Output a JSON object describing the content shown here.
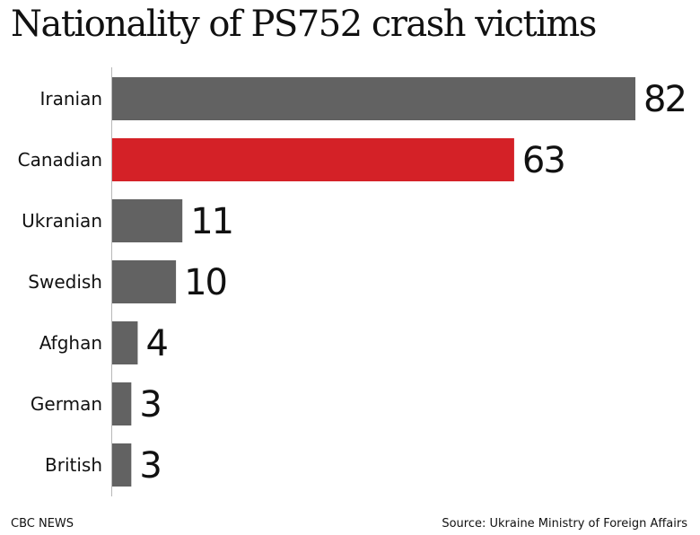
{
  "chart_data": {
    "type": "bar",
    "orientation": "horizontal",
    "title": "Nationality of PS752 crash victims",
    "categories": [
      "Iranian",
      "Canadian",
      "Ukranian",
      "Swedish",
      "Afghan",
      "German",
      "British"
    ],
    "values": [
      82,
      63,
      11,
      10,
      4,
      3,
      3
    ],
    "colors": [
      "#626262",
      "#d42127",
      "#626262",
      "#626262",
      "#626262",
      "#626262",
      "#626262"
    ],
    "xlim": [
      0,
      82
    ],
    "grid": false,
    "legend": "none"
  },
  "footer": {
    "brand": "CBC NEWS",
    "source": "Source: Ukraine Ministry of Foreign Affairs"
  }
}
